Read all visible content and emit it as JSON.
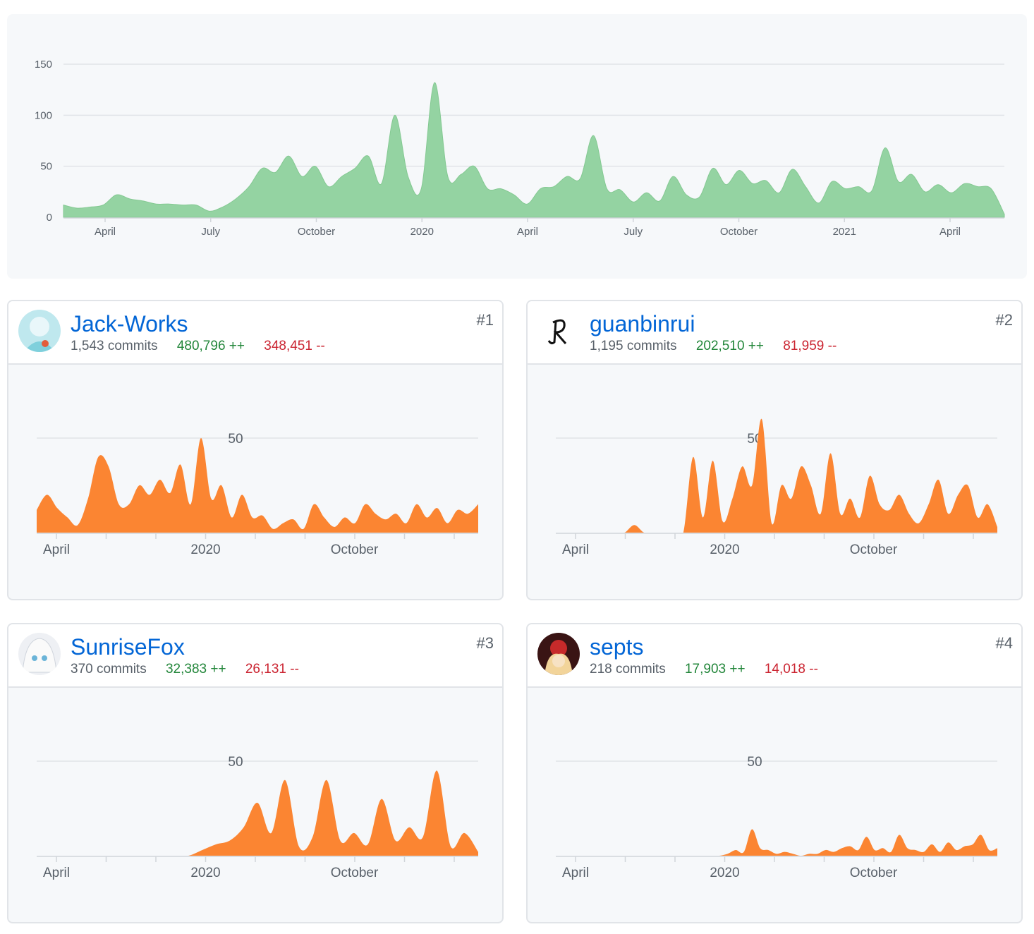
{
  "colors": {
    "overview_fill": "#94d3a2",
    "overview_stroke": "#84c992",
    "contrib_fill": "#fb8532",
    "grid": "#e1e4e8",
    "link": "#0366d6",
    "adds": "#22863a",
    "dels": "#cb2431"
  },
  "chart_data": [
    {
      "type": "area",
      "title": "",
      "y_ticks": [
        "0",
        "50",
        "100",
        "150"
      ],
      "ylim": [
        0,
        150
      ],
      "x_tick_labels": [
        "April",
        "July",
        "October",
        "2020",
        "April",
        "July",
        "October",
        "2021",
        "April"
      ],
      "grid": true,
      "series": [
        {
          "values": [
            12,
            9,
            10,
            12,
            22,
            18,
            16,
            13,
            13,
            12,
            12,
            6,
            10,
            18,
            30,
            48,
            44,
            60,
            40,
            50,
            30,
            40,
            48,
            60,
            33,
            100,
            40,
            28,
            132,
            40,
            42,
            50,
            28,
            28,
            22,
            13,
            28,
            30,
            40,
            38,
            80,
            28,
            27,
            15,
            24,
            16,
            40,
            22,
            20,
            48,
            32,
            46,
            33,
            36,
            24,
            47,
            30,
            14,
            35,
            28,
            30,
            26,
            68,
            35,
            42,
            25,
            32,
            24,
            33,
            30,
            28,
            3
          ]
        }
      ]
    },
    {
      "type": "area",
      "y_ticks": [
        "50"
      ],
      "x_tick_labels": [
        "April",
        "2020",
        "October"
      ],
      "series": [
        {
          "values": [
            12,
            20,
            13,
            8,
            4,
            18,
            40,
            35,
            15,
            15,
            25,
            20,
            28,
            21,
            36,
            15,
            50,
            18,
            25,
            8,
            20,
            8,
            9,
            2,
            5,
            7,
            2,
            15,
            8,
            3,
            8,
            5,
            15,
            10,
            7,
            10,
            5,
            15,
            8,
            13,
            5,
            12,
            10,
            15
          ]
        }
      ]
    },
    {
      "type": "area",
      "y_ticks": [
        "50"
      ],
      "x_tick_labels": [
        "April",
        "2020",
        "October"
      ],
      "series": [
        {
          "values": [
            0,
            0,
            0,
            0,
            0,
            0,
            0,
            0,
            4,
            0,
            0,
            0,
            0,
            0,
            40,
            8,
            38,
            6,
            18,
            35,
            25,
            60,
            5,
            25,
            18,
            35,
            25,
            10,
            42,
            10,
            18,
            8,
            30,
            15,
            12,
            20,
            10,
            5,
            15,
            28,
            10,
            20,
            25,
            8,
            15,
            3
          ]
        }
      ]
    },
    {
      "type": "area",
      "y_ticks": [
        "50"
      ],
      "x_tick_labels": [
        "April",
        "2020",
        "October"
      ],
      "series": [
        {
          "values": [
            0,
            0,
            0,
            0,
            0,
            0,
            0,
            0,
            0,
            0,
            0,
            0,
            3,
            6,
            8,
            15,
            28,
            12,
            40,
            5,
            10,
            40,
            8,
            12,
            6,
            30,
            8,
            15,
            10,
            45,
            5,
            12,
            2
          ]
        }
      ]
    },
    {
      "type": "area",
      "y_ticks": [
        "50"
      ],
      "x_tick_labels": [
        "April",
        "2020",
        "October"
      ],
      "series": [
        {
          "values": [
            0,
            0,
            0,
            0,
            0,
            0,
            0,
            0,
            0,
            0,
            0,
            0,
            0,
            0,
            0,
            0,
            0,
            0,
            0,
            0,
            0,
            1,
            3,
            2,
            14,
            4,
            3,
            1,
            2,
            1,
            0,
            1,
            1,
            3,
            2,
            4,
            5,
            3,
            10,
            3,
            4,
            2,
            11,
            4,
            3,
            2,
            6,
            2,
            7,
            3,
            5,
            6,
            11,
            3,
            4
          ]
        }
      ]
    }
  ],
  "contributors": [
    {
      "name": "Jack-Works",
      "commits": "1,543 commits",
      "adds": "480,796 ++",
      "dels": "348,451 --",
      "rank": "#1"
    },
    {
      "name": "guanbinrui",
      "commits": "1,195 commits",
      "adds": "202,510 ++",
      "dels": "81,959 --",
      "rank": "#2"
    },
    {
      "name": "SunriseFox",
      "commits": "370 commits",
      "adds": "32,383 ++",
      "dels": "26,131 --",
      "rank": "#3"
    },
    {
      "name": "septs",
      "commits": "218 commits",
      "adds": "17,903 ++",
      "dels": "14,018 --",
      "rank": "#4"
    }
  ]
}
